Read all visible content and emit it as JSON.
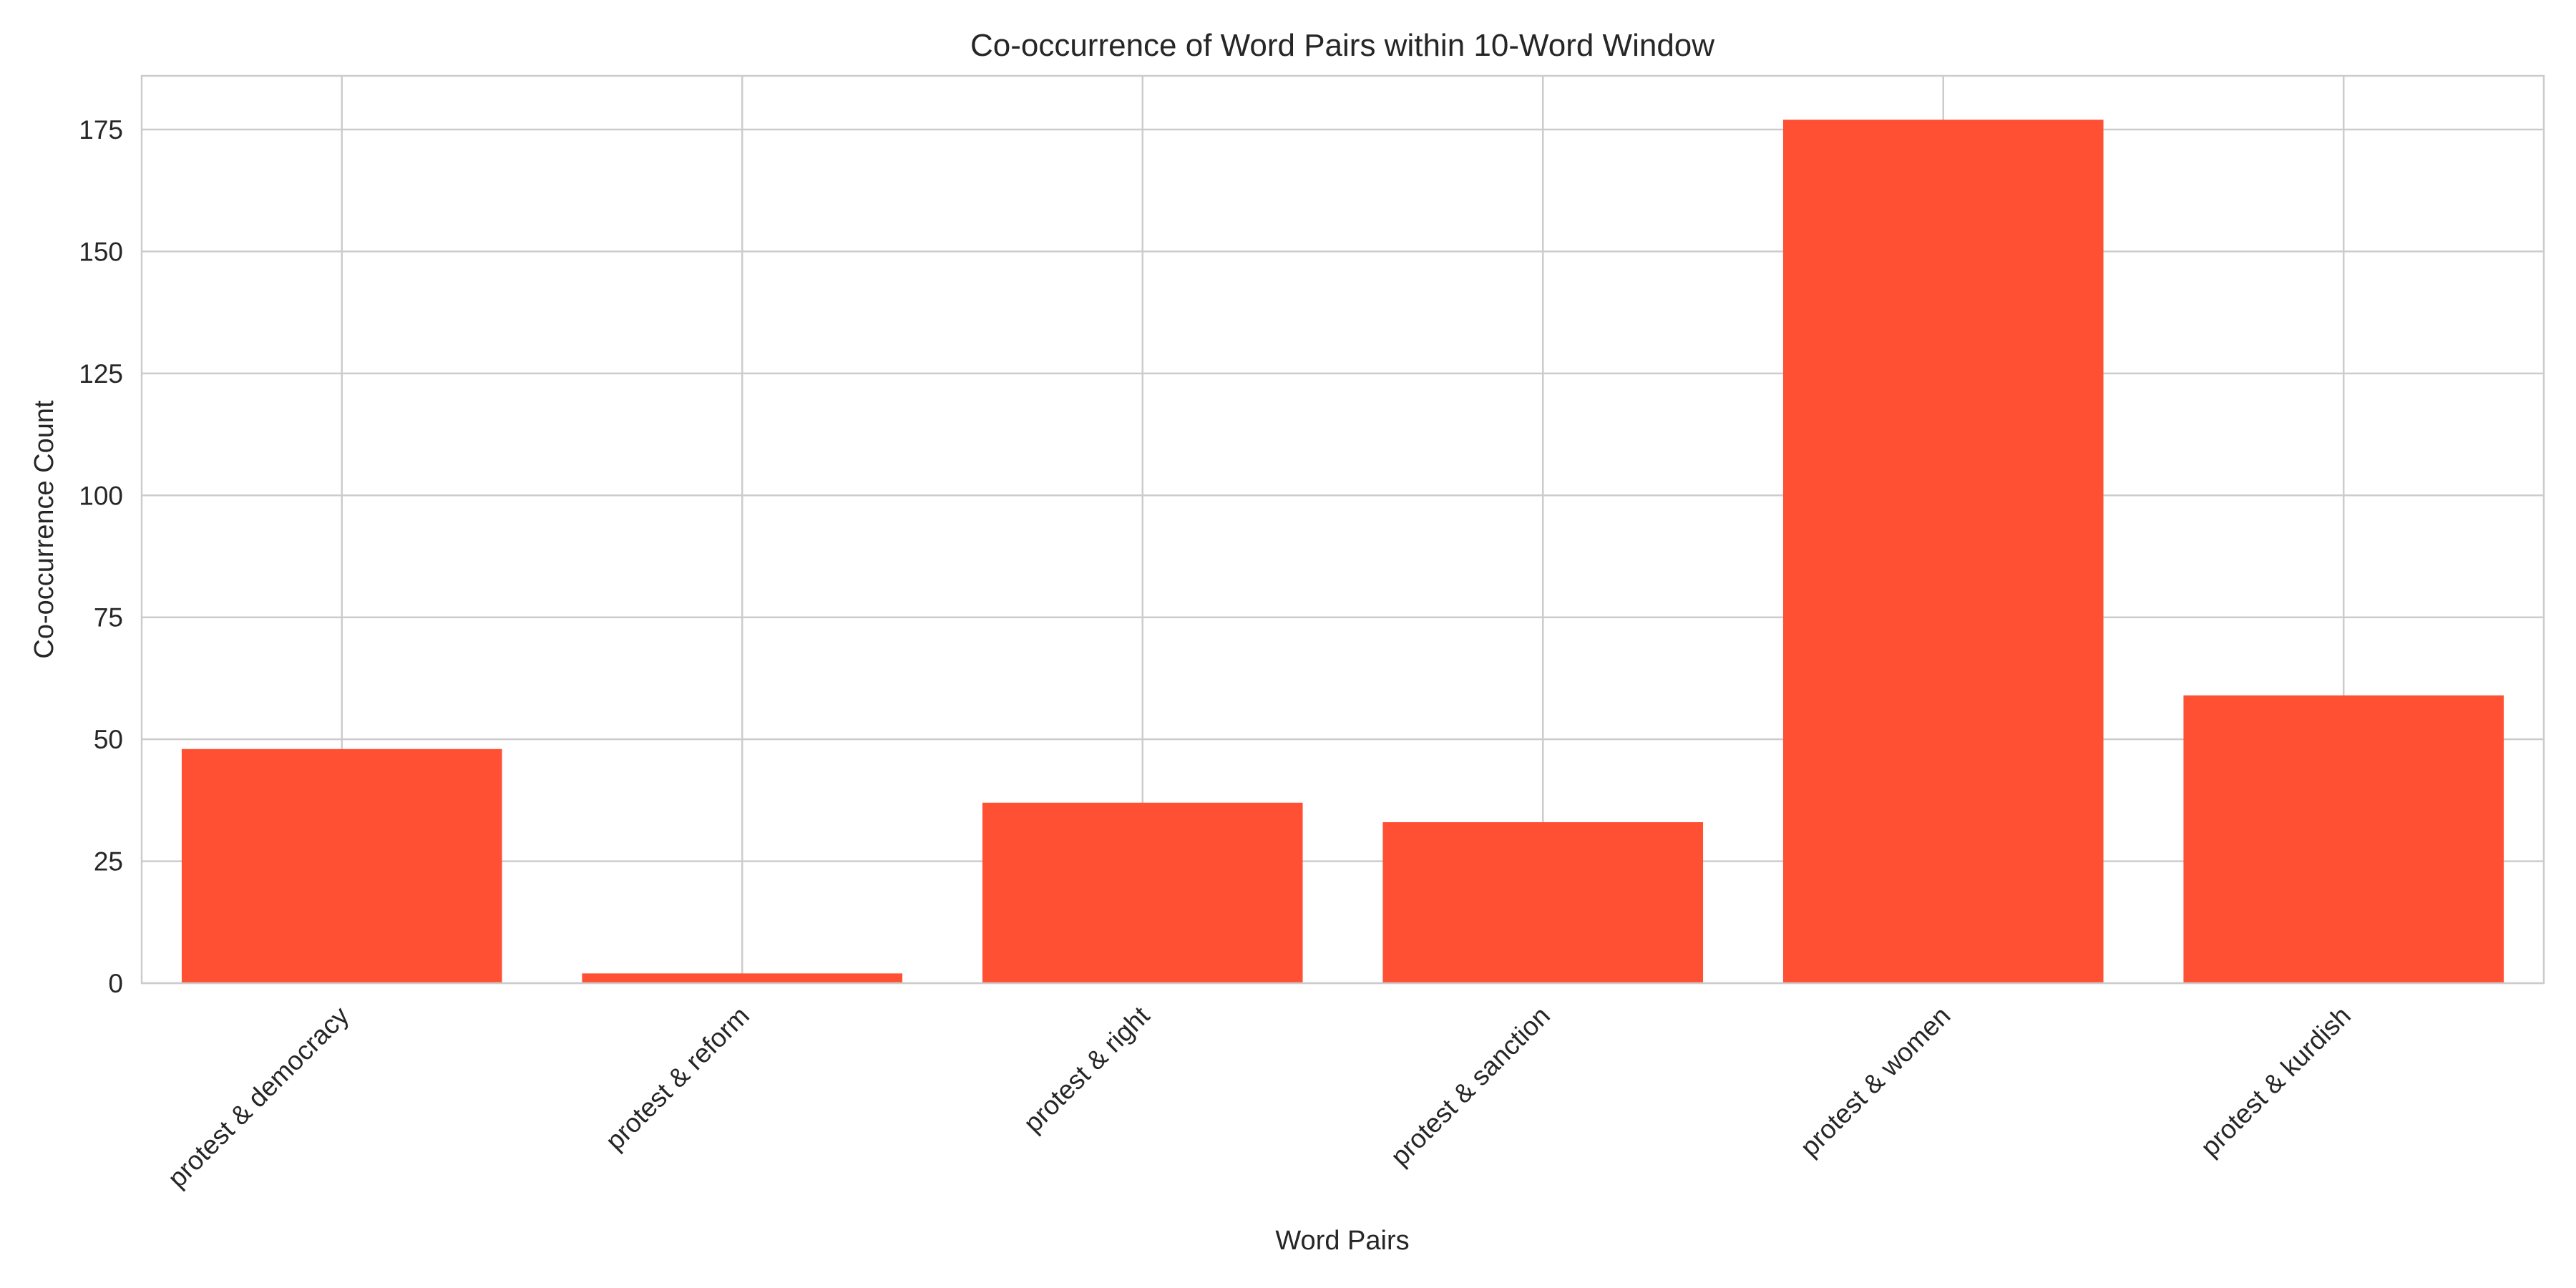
{
  "chart_data": {
    "type": "bar",
    "title": "Co-occurrence of Word Pairs within 10-Word Window",
    "xlabel": "Word Pairs",
    "ylabel": "Co-occurrence Count",
    "categories": [
      "protest & democracy",
      "protest & reform",
      "protest & right",
      "protest & sanction",
      "protest & women",
      "protest & kurdish"
    ],
    "values": [
      48,
      2,
      37,
      33,
      177,
      59
    ],
    "ylim": [
      0,
      186
    ],
    "yticks": [
      0,
      25,
      50,
      75,
      100,
      125,
      150,
      175
    ],
    "bar_color": "#ff5034",
    "grid": true,
    "legend": null
  }
}
